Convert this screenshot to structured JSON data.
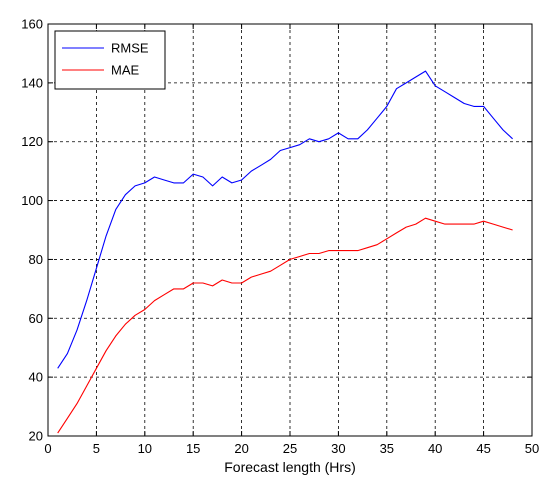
{
  "chart_data": {
    "type": "line",
    "title": "",
    "xlabel": "Forecast length (Hrs)",
    "ylabel": "",
    "xlim": [
      0,
      50
    ],
    "ylim": [
      20,
      160
    ],
    "xticks": [
      0,
      5,
      10,
      15,
      20,
      25,
      30,
      35,
      40,
      45,
      50
    ],
    "yticks": [
      20,
      40,
      60,
      80,
      100,
      120,
      140,
      160
    ],
    "grid": true,
    "legend_position": "top-left",
    "series": [
      {
        "name": "RMSE",
        "color": "#0000ff",
        "x": [
          1,
          2,
          3,
          4,
          5,
          6,
          7,
          8,
          9,
          10,
          11,
          12,
          13,
          14,
          15,
          16,
          17,
          18,
          19,
          20,
          21,
          22,
          23,
          24,
          25,
          26,
          27,
          28,
          29,
          30,
          31,
          32,
          33,
          34,
          35,
          36,
          37,
          38,
          39,
          40,
          41,
          42,
          43,
          44,
          45,
          46,
          47,
          48
        ],
        "y": [
          43,
          48,
          56,
          66,
          77,
          88,
          97,
          102,
          105,
          106,
          108,
          107,
          106,
          106,
          109,
          108,
          105,
          108,
          106,
          107,
          110,
          112,
          114,
          117,
          118,
          119,
          121,
          120,
          121,
          123,
          121,
          121,
          124,
          128,
          132,
          138,
          140,
          142,
          144,
          139,
          137,
          135,
          133,
          132,
          132,
          128,
          124,
          121
        ]
      },
      {
        "name": "MAE",
        "color": "#ff0000",
        "x": [
          1,
          2,
          3,
          4,
          5,
          6,
          7,
          8,
          9,
          10,
          11,
          12,
          13,
          14,
          15,
          16,
          17,
          18,
          19,
          20,
          21,
          22,
          23,
          24,
          25,
          26,
          27,
          28,
          29,
          30,
          31,
          32,
          33,
          34,
          35,
          36,
          37,
          38,
          39,
          40,
          41,
          42,
          43,
          44,
          45,
          46,
          47,
          48
        ],
        "y": [
          21,
          26,
          31,
          37,
          43,
          49,
          54,
          58,
          61,
          63,
          66,
          68,
          70,
          70,
          72,
          72,
          71,
          73,
          72,
          72,
          74,
          75,
          76,
          78,
          80,
          81,
          82,
          82,
          83,
          83,
          83,
          83,
          84,
          85,
          87,
          89,
          91,
          92,
          94,
          93,
          92,
          92,
          92,
          92,
          93,
          92,
          91,
          90
        ]
      }
    ]
  }
}
